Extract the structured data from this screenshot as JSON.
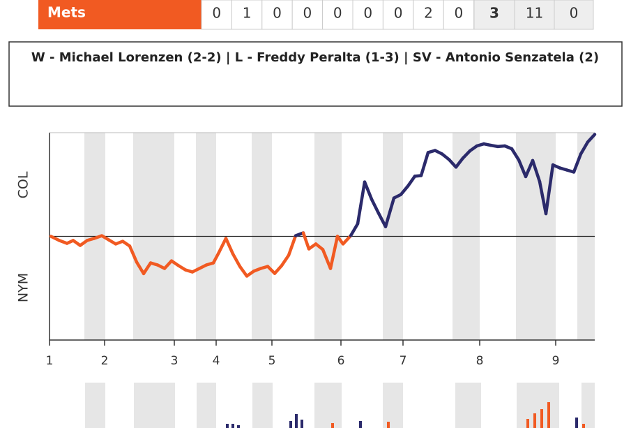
{
  "scoreboard": {
    "team": "Mets",
    "innings": [
      0,
      1,
      0,
      0,
      0,
      0,
      0,
      2,
      0
    ],
    "runs": 3,
    "hits": 11,
    "errors": 0
  },
  "decisions": "W - Michael Lorenzen (2-2) | L - Freddy Peralta (1-3) | SV - Antonio Senzatela (2)",
  "chart_data": [
    {
      "type": "line",
      "y_label_top": "COL",
      "y_label_bottom": "NYM",
      "x": [
        0.2,
        1.4,
        2.5,
        3.4,
        4.4,
        5.4,
        6.4,
        7.5,
        8.5,
        9.5,
        10.5,
        11.5,
        12.5,
        13.5,
        14.5,
        15.5,
        16.5,
        17.5,
        18.5,
        19.5,
        20.5,
        21.5,
        22.5,
        23.5,
        24.3,
        25.3,
        26.3,
        27.3,
        28.3,
        29.3,
        30.3,
        31.3,
        32.3,
        33.3,
        34.3,
        35.3,
        36.4,
        37.2,
        38.2,
        39.2,
        40.3,
        41.3,
        42.1,
        43.2,
        44.2,
        45.2,
        46.2,
        47.2,
        48.2,
        49.4,
        50.4,
        51.4,
        52.4,
        53.3,
        54.3,
        55.3,
        56.3,
        57.3,
        58.3,
        59.3,
        60.3,
        61.3,
        62.3,
        63.3,
        64.3,
        65.3,
        66.3,
        67.3,
        68.3,
        69.3,
        70.3,
        71.2,
        72.2,
        73.2,
        74.2,
        75.2,
        76.2,
        77.2,
        78.2
      ],
      "values": [
        50,
        48,
        46.6,
        48,
        45.6,
        48,
        49,
        50.3,
        48.3,
        46.3,
        47.6,
        45.3,
        37.5,
        31.9,
        37.1,
        36.1,
        34.4,
        38.1,
        35.8,
        33.7,
        32.7,
        34.4,
        36.1,
        37.1,
        42.2,
        49,
        41.5,
        35.4,
        30.7,
        33.1,
        34.4,
        35.4,
        32,
        35.8,
        40.8,
        50.3,
        51.7,
        43.9,
        46.3,
        43.6,
        34.4,
        50,
        46.3,
        50.3,
        56.1,
        76.4,
        68,
        61.2,
        54.7,
        68.6,
        70.3,
        74.4,
        79.2,
        79.5,
        90.7,
        91.7,
        90,
        87.3,
        83.6,
        88,
        91.5,
        93.9,
        94.9,
        94.2,
        93.6,
        93.9,
        92.5,
        87.1,
        79,
        86.8,
        76.6,
        61,
        84.7,
        83.2,
        82.2,
        81.2,
        90,
        95.8,
        99.5
      ],
      "midline": 50,
      "color_above": "#2b2a6b",
      "color_below": "#f15a22",
      "xlim": [
        0,
        78.2
      ],
      "ylim": [
        0,
        100
      ],
      "xticks": [
        {
          "value": 0,
          "label": "1"
        },
        {
          "value": 7.9,
          "label": "2"
        },
        {
          "value": 17.9,
          "label": "3"
        },
        {
          "value": 23.9,
          "label": "4"
        },
        {
          "value": 31.9,
          "label": "5"
        },
        {
          "value": 41.8,
          "label": "6"
        },
        {
          "value": 50.7,
          "label": "7"
        },
        {
          "value": 61.7,
          "label": "8"
        },
        {
          "value": 72.6,
          "label": "9"
        }
      ],
      "bands": [
        [
          5,
          8
        ],
        [
          12,
          17.9
        ],
        [
          21,
          23.9
        ],
        [
          29,
          31.9
        ],
        [
          38,
          41.9
        ],
        [
          47.8,
          50.7
        ],
        [
          57.8,
          61.7
        ],
        [
          66.9,
          72.6
        ],
        [
          75.7,
          78.2
        ]
      ],
      "band_color": "#e6e6e6"
    },
    {
      "type": "bar",
      "xlim": [
        0,
        78.2
      ],
      "ylim": [
        0,
        40
      ],
      "series": [
        {
          "color": "#2b2a6b",
          "x": [
            25.5,
            26.3,
            27.1,
            34.6,
            35.4,
            36.2,
            44.6,
            75.6
          ],
          "values": [
            6,
            6,
            4,
            10,
            20,
            12,
            10,
            15
          ]
        },
        {
          "color": "#f15a22",
          "x": [
            40.6,
            48.6,
            68.6,
            69.6,
            70.6,
            71.6,
            76.6
          ],
          "values": [
            7,
            9,
            13,
            21,
            27,
            37,
            6
          ]
        }
      ],
      "bands": [
        [
          5.1,
          8
        ],
        [
          12.1,
          18
        ],
        [
          21.1,
          23.9
        ],
        [
          29.1,
          32
        ],
        [
          38,
          41.9
        ],
        [
          47.8,
          50.7
        ],
        [
          58.2,
          61.9
        ],
        [
          67,
          73.1
        ],
        [
          76.3,
          78.2
        ]
      ],
      "band_color": "#e6e6e6"
    }
  ]
}
